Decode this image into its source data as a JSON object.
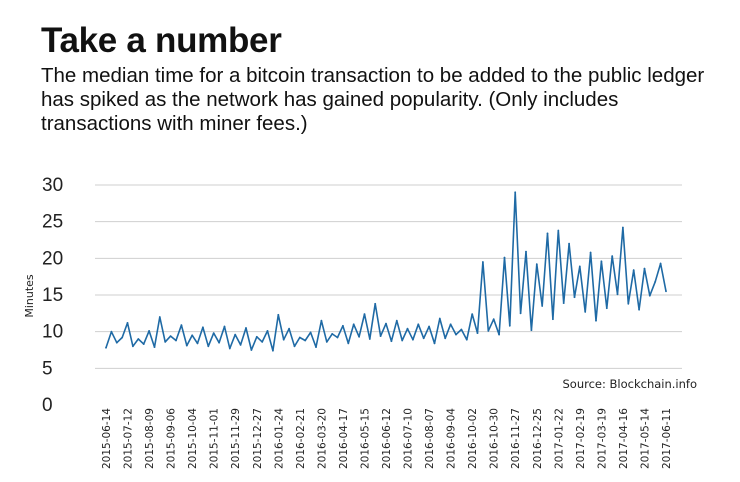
{
  "title": "Take a number",
  "subtitle": "The median time for a bitcoin transaction to be added to the public ledger has spiked as the network has gained popularity. (Only includes transactions with miner fees.)",
  "source": "Source: Blockchain.info",
  "colors": {
    "line": "#1f6aa5",
    "grid": "#cfcfcf",
    "text": "#111111"
  },
  "chart_data": {
    "type": "line",
    "title": "Take a number",
    "ylabel": "Minutes",
    "xlabel": "",
    "ylim": [
      0,
      30
    ],
    "yticks": [
      0,
      5,
      10,
      15,
      20,
      25,
      30
    ],
    "grid": true,
    "legend": "none",
    "x_tick_labels": [
      "2015-06-14",
      "2015-07-12",
      "2015-08-09",
      "2015-09-06",
      "2015-10-04",
      "2015-11-01",
      "2015-11-29",
      "2015-12-27",
      "2016-01-24",
      "2016-02-21",
      "2016-03-20",
      "2016-04-17",
      "2016-05-15",
      "2016-06-12",
      "2016-07-10",
      "2016-08-07",
      "2016-09-04",
      "2016-10-02",
      "2016-10-30",
      "2016-11-27",
      "2016-12-25",
      "2017-01-22",
      "2017-02-19",
      "2017-03-19",
      "2017-04-16",
      "2017-05-14",
      "2017-06-11"
    ],
    "series": [
      {
        "x": [
          "2015-06-14",
          "2015-06-21",
          "2015-06-28",
          "2015-07-05",
          "2015-07-12",
          "2015-07-19",
          "2015-07-26",
          "2015-08-02",
          "2015-08-09",
          "2015-08-16",
          "2015-08-23",
          "2015-08-30",
          "2015-09-06",
          "2015-09-13",
          "2015-09-20",
          "2015-09-27",
          "2015-10-04",
          "2015-10-11",
          "2015-10-18",
          "2015-10-25",
          "2015-11-01",
          "2015-11-08",
          "2015-11-15",
          "2015-11-22",
          "2015-11-29",
          "2015-12-06",
          "2015-12-13",
          "2015-12-20",
          "2015-12-27",
          "2016-01-03",
          "2016-01-10",
          "2016-01-17",
          "2016-01-24",
          "2016-01-31",
          "2016-02-07",
          "2016-02-14",
          "2016-02-21",
          "2016-02-28",
          "2016-03-06",
          "2016-03-13",
          "2016-03-20",
          "2016-03-27",
          "2016-04-03",
          "2016-04-10",
          "2016-04-17",
          "2016-04-24",
          "2016-05-01",
          "2016-05-08",
          "2016-05-15",
          "2016-05-22",
          "2016-05-29",
          "2016-06-05",
          "2016-06-12",
          "2016-06-19",
          "2016-06-26",
          "2016-07-03",
          "2016-07-10",
          "2016-07-17",
          "2016-07-24",
          "2016-07-31",
          "2016-08-07",
          "2016-08-14",
          "2016-08-21",
          "2016-08-28",
          "2016-09-04",
          "2016-09-11",
          "2016-09-18",
          "2016-09-25",
          "2016-10-02",
          "2016-10-09",
          "2016-10-16",
          "2016-10-23",
          "2016-10-30",
          "2016-11-06",
          "2016-11-13",
          "2016-11-20",
          "2016-11-27",
          "2016-12-04",
          "2016-12-11",
          "2016-12-18",
          "2016-12-25",
          "2017-01-01",
          "2017-01-08",
          "2017-01-15",
          "2017-01-22",
          "2017-01-29",
          "2017-02-05",
          "2017-02-12",
          "2017-02-19",
          "2017-02-26",
          "2017-03-05",
          "2017-03-12",
          "2017-03-19",
          "2017-03-26",
          "2017-04-02",
          "2017-04-09",
          "2017-04-16",
          "2017-04-23",
          "2017-04-30",
          "2017-05-07",
          "2017-05-14",
          "2017-05-21",
          "2017-05-28",
          "2017-06-04",
          "2017-06-11"
        ],
        "y": [
          7.8,
          10.0,
          8.5,
          9.2,
          11.2,
          8.0,
          9.0,
          8.3,
          10.1,
          7.9,
          12.0,
          8.6,
          9.4,
          8.8,
          10.9,
          8.1,
          9.5,
          8.4,
          10.6,
          8.0,
          9.8,
          8.5,
          10.7,
          7.7,
          9.6,
          8.2,
          10.5,
          7.5,
          9.3,
          8.6,
          10.1,
          7.4,
          12.3,
          8.9,
          10.4,
          8.0,
          9.2,
          8.8,
          9.9,
          7.9,
          11.5,
          8.6,
          9.7,
          9.2,
          10.8,
          8.4,
          11.0,
          9.3,
          12.4,
          9.0,
          13.8,
          9.4,
          11.1,
          8.7,
          11.5,
          8.8,
          10.4,
          8.9,
          11.0,
          9.1,
          10.7,
          8.4,
          11.8,
          9.1,
          11.0,
          9.6,
          10.3,
          8.9,
          12.4,
          9.8,
          19.5,
          10.1,
          11.7,
          9.6,
          20.1,
          10.8,
          29.0,
          12.5,
          20.9,
          10.2,
          19.2,
          13.5,
          23.4,
          11.7,
          23.8,
          13.9,
          22.0,
          14.7,
          18.9,
          12.7,
          20.8,
          11.5,
          19.6,
          13.2,
          20.3,
          15.1,
          24.2,
          13.8,
          18.4,
          13.0,
          18.6,
          14.9,
          16.8,
          19.3,
          15.5
        ]
      }
    ]
  }
}
